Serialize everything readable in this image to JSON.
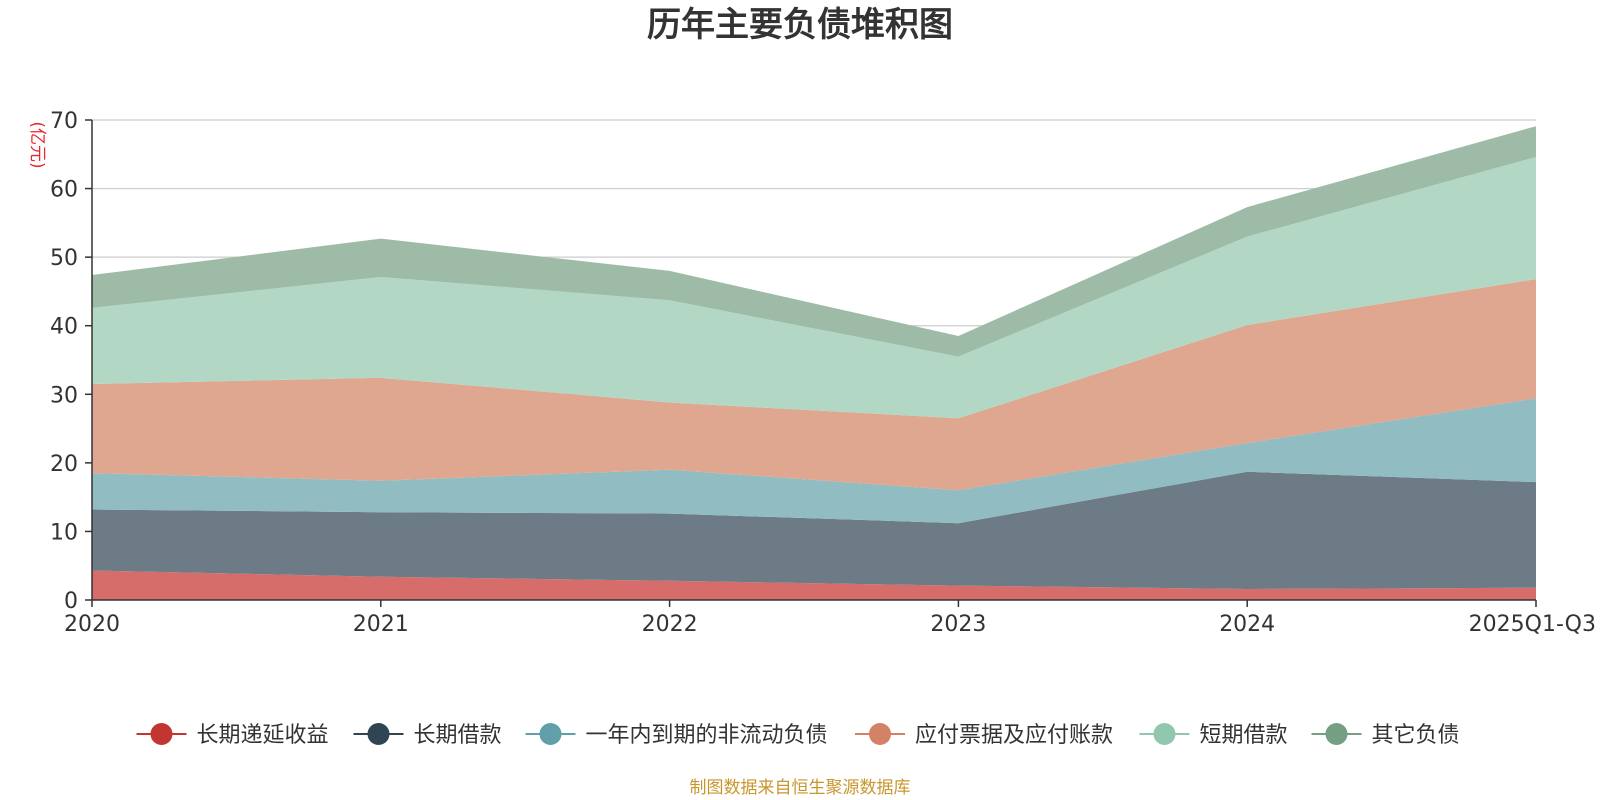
{
  "chart_data": {
    "type": "area",
    "stacked": true,
    "title": "历年主要负债堆积图",
    "ylabel": "(亿元)",
    "xlabel": "",
    "categories": [
      "2020",
      "2021",
      "2022",
      "2023",
      "2024",
      "2025Q1-Q3"
    ],
    "ylim": [
      0,
      70
    ],
    "yticks": [
      0,
      10,
      20,
      30,
      40,
      50,
      60,
      70
    ],
    "grid": true,
    "legend_position": "bottom",
    "series": [
      {
        "name": "长期递延收益",
        "color": "#c23531",
        "area_color": "#d66d6b",
        "values": [
          4.3,
          3.4,
          2.8,
          2.1,
          1.6,
          1.8
        ]
      },
      {
        "name": "长期借款",
        "color": "#2f4554",
        "area_color": "#6c7b86",
        "values": [
          8.9,
          9.4,
          9.8,
          9.1,
          17.1,
          15.4
        ]
      },
      {
        "name": "一年内到期的非流动负债",
        "color": "#61a0a8",
        "area_color": "#90bcc2",
        "values": [
          5.3,
          4.6,
          6.4,
          4.8,
          4.2,
          12.2
        ]
      },
      {
        "name": "应付票据及应付账款",
        "color": "#d48265",
        "area_color": "#dfa690",
        "values": [
          13.0,
          15.0,
          9.8,
          10.5,
          17.2,
          17.4
        ]
      },
      {
        "name": "短期借款",
        "color": "#91c7ae",
        "area_color": "#b2d8c5",
        "values": [
          11.1,
          14.7,
          14.9,
          9.0,
          12.9,
          17.8
        ]
      },
      {
        "name": "其它负债",
        "color": "#749f83",
        "area_color": "#9ebba8",
        "values": [
          4.8,
          5.6,
          4.3,
          3.0,
          4.3,
          4.5
        ]
      }
    ]
  },
  "footer": {
    "source": "制图数据来自恒生聚源数据库"
  }
}
